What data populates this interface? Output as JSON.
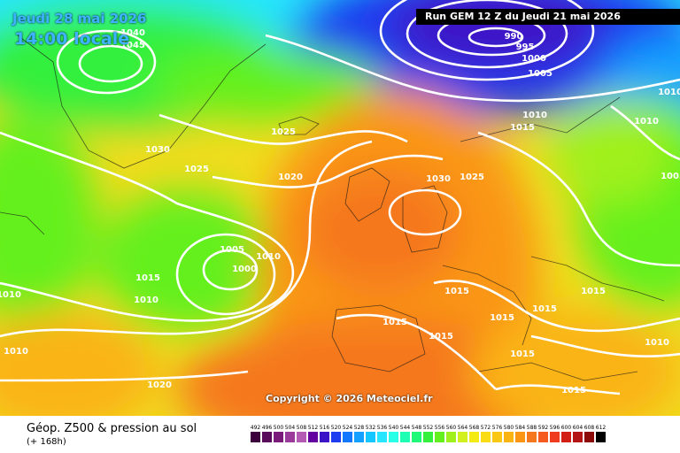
{
  "header": {
    "date": "Jeudi 28 mai 2026",
    "time": "14:00 locale",
    "run": "Run GEM 12 Z du Jeudi 21 mai 2026"
  },
  "copyright": "Copyright © 2026 Meteociel.fr",
  "footer": {
    "title": "Géop. Z500 & pression au sol",
    "subtitle": "(+ 168h)"
  },
  "legend": {
    "labels": [
      "492",
      "496",
      "500",
      "504",
      "508",
      "512",
      "516",
      "520",
      "524",
      "528",
      "532",
      "536",
      "540",
      "544",
      "548",
      "552",
      "556",
      "560",
      "564",
      "568",
      "572",
      "576",
      "580",
      "584",
      "588",
      "592",
      "596",
      "600",
      "604",
      "608",
      "612"
    ],
    "colors": [
      "#3c003c",
      "#5a0a5a",
      "#7a1a7a",
      "#9a3a9a",
      "#b45ab4",
      "#6400a0",
      "#3c14c8",
      "#1e3cf0",
      "#1478ff",
      "#14a0ff",
      "#14c8ff",
      "#28e6ff",
      "#28ffe6",
      "#1effb4",
      "#1efa78",
      "#32f03c",
      "#64f01e",
      "#a0f01e",
      "#d2f01e",
      "#f5eb14",
      "#fadc14",
      "#fac814",
      "#fab414",
      "#fa9614",
      "#f5781e",
      "#f55a1e",
      "#f03c1e",
      "#d21e14",
      "#b41414",
      "#8c0a0a",
      "#000000"
    ]
  },
  "isobars": {
    "labels": [
      {
        "text": "1040"
      },
      {
        "text": "1045"
      },
      {
        "text": "1030"
      },
      {
        "text": "1025"
      },
      {
        "text": "1025"
      },
      {
        "text": "1020"
      },
      {
        "text": "1005"
      },
      {
        "text": "1000"
      },
      {
        "text": "1010"
      },
      {
        "text": "1015"
      },
      {
        "text": "1010"
      },
      {
        "text": "1010"
      },
      {
        "text": "1010"
      },
      {
        "text": "1020"
      },
      {
        "text": "990"
      },
      {
        "text": "995"
      },
      {
        "text": "1000"
      },
      {
        "text": "1005"
      },
      {
        "text": "1010"
      },
      {
        "text": "1010"
      },
      {
        "text": "1015"
      },
      {
        "text": "1010"
      },
      {
        "text": "1030"
      },
      {
        "text": "1025"
      },
      {
        "text": "1005"
      },
      {
        "text": "1015"
      },
      {
        "text": "1015"
      },
      {
        "text": "1015"
      },
      {
        "text": "1015"
      },
      {
        "text": "1015"
      },
      {
        "text": "1015"
      },
      {
        "text": "1015"
      },
      {
        "text": "1015"
      },
      {
        "text": "1010"
      }
    ]
  }
}
